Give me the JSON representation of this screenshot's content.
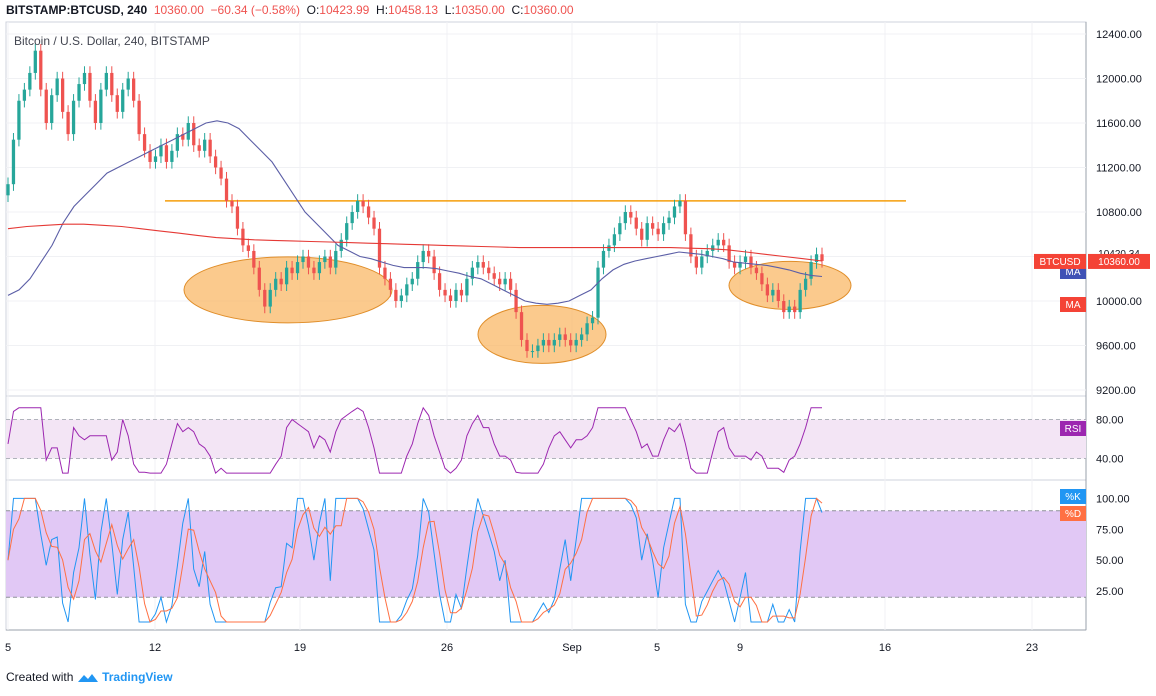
{
  "header": {
    "symbol": "BITSTAMP:BTCUSD",
    "interval": "240",
    "last": "10360.00",
    "change": "−60.34 (−0.58%)",
    "open_label": "O:",
    "open": "10423.99",
    "high_label": "H:",
    "high": "10458.13",
    "low_label": "L:",
    "low": "10350.00",
    "close_label": "C:",
    "close": "10360.00"
  },
  "chart_title": "Bitcoin / U.S. Dollar, 240, BITSTAMP",
  "footer": {
    "created_with": "Created with",
    "brand": "TradingView"
  },
  "colors": {
    "up": "#26a69a",
    "down": "#ef5350",
    "ma_fast": "#5b5ea6",
    "ma_slow": "#e53935",
    "resistance": "#f59e0b",
    "zone": "#f9b35c",
    "rsi": "#9c27b0",
    "stoch_k": "#2196f3",
    "stoch_d": "#ff7043"
  },
  "labels": {
    "ma_top": "MA",
    "ma_bottom": "MA",
    "last_price_tag": "10420.34",
    "symbol_tag": "BTCUSD",
    "symbol_price_tag": "10360.00",
    "rsi_tag": "RSI",
    "k_tag": "%K",
    "d_tag": "%D"
  },
  "chart_data": [
    {
      "type": "candlestick",
      "title": "Bitcoin / U.S. Dollar, 240, BITSTAMP",
      "ylim": [
        9100,
        12550
      ],
      "y_ticks": [
        "12400.00",
        "12000.00",
        "11600.00",
        "11200.00",
        "10800.00",
        "10400.00",
        "10000.00",
        "9600.00",
        "9200.00"
      ],
      "x_ticks": [
        "5",
        "12",
        "19",
        "26",
        "Sep",
        "5",
        "9",
        "16",
        "23"
      ],
      "closes": [
        11050,
        11450,
        11800,
        11900,
        12050,
        12250,
        11900,
        11600,
        11850,
        12000,
        11700,
        11500,
        11800,
        11950,
        12050,
        11800,
        11600,
        11900,
        12050,
        11850,
        11700,
        11900,
        12000,
        11800,
        11500,
        11350,
        11250,
        11300,
        11400,
        11250,
        11350,
        11500,
        11450,
        11600,
        11400,
        11350,
        11450,
        11300,
        11200,
        11100,
        10900,
        10850,
        10650,
        10500,
        10450,
        10300,
        10100,
        9950,
        10100,
        10200,
        10150,
        10300,
        10250,
        10350,
        10400,
        10300,
        10250,
        10350,
        10400,
        10300,
        10450,
        10550,
        10700,
        10800,
        10900,
        10850,
        10750,
        10650,
        10300,
        10200,
        10100,
        10000,
        10050,
        10150,
        10200,
        10350,
        10450,
        10400,
        10250,
        10100,
        10050,
        10000,
        10100,
        10050,
        10200,
        10300,
        10350,
        10300,
        10250,
        10200,
        10150,
        10200,
        10100,
        9900,
        9650,
        9550,
        9550,
        9600,
        9650,
        9600,
        9650,
        9700,
        9650,
        9600,
        9650,
        9700,
        9800,
        9850,
        10300,
        10450,
        10500,
        10600,
        10700,
        10800,
        10750,
        10650,
        10550,
        10700,
        10650,
        10600,
        10700,
        10750,
        10850,
        10900,
        10600,
        10400,
        10300,
        10400,
        10450,
        10500,
        10550,
        10500,
        10350,
        10300,
        10350,
        10400,
        10300,
        10250,
        10150,
        10050,
        10100,
        10000,
        9900,
        9950,
        9900,
        10100,
        10200,
        10350,
        10420,
        10360
      ],
      "ma_fast_values": [
        10050,
        10100,
        10200,
        10350,
        10500,
        10700,
        10850,
        10950,
        11050,
        11150,
        11200,
        11250,
        11300,
        11350,
        11400,
        11450,
        11500,
        11550,
        11600,
        11620,
        11600,
        11550,
        11450,
        11350,
        11250,
        11100,
        10950,
        10800,
        10700,
        10600,
        10500,
        10450,
        10400,
        10380,
        10350,
        10320,
        10300,
        10300,
        10300,
        10290,
        10270,
        10250,
        10220,
        10200,
        10150,
        10100,
        10050,
        10000,
        9980,
        9970,
        9980,
        10000,
        10050,
        10100,
        10200,
        10280,
        10330,
        10360,
        10380,
        10400,
        10420,
        10440,
        10430,
        10420,
        10400,
        10380,
        10350,
        10340,
        10330,
        10320,
        10300,
        10280,
        10250,
        10230,
        10220
      ],
      "ma_slow_values": [
        10650,
        10670,
        10680,
        10690,
        10690,
        10680,
        10670,
        10650,
        10630,
        10610,
        10590,
        10570,
        10560,
        10550,
        10545,
        10540,
        10535,
        10530,
        10525,
        10520,
        10515,
        10510,
        10505,
        10500,
        10495,
        10490,
        10485,
        10480,
        10480,
        10480,
        10480,
        10480,
        10480,
        10480,
        10480,
        10480,
        10475,
        10470,
        10460,
        10440,
        10420,
        10400,
        10380,
        10360
      ],
      "resistance": 10900,
      "rsi": {
        "levels": [
          80,
          40
        ],
        "ticks": [
          "80.00",
          "40.00"
        ]
      },
      "stochastic": {
        "levels": [
          90,
          20
        ],
        "ticks": [
          "100.00",
          "75.00",
          "50.00",
          "25.00"
        ]
      }
    }
  ]
}
